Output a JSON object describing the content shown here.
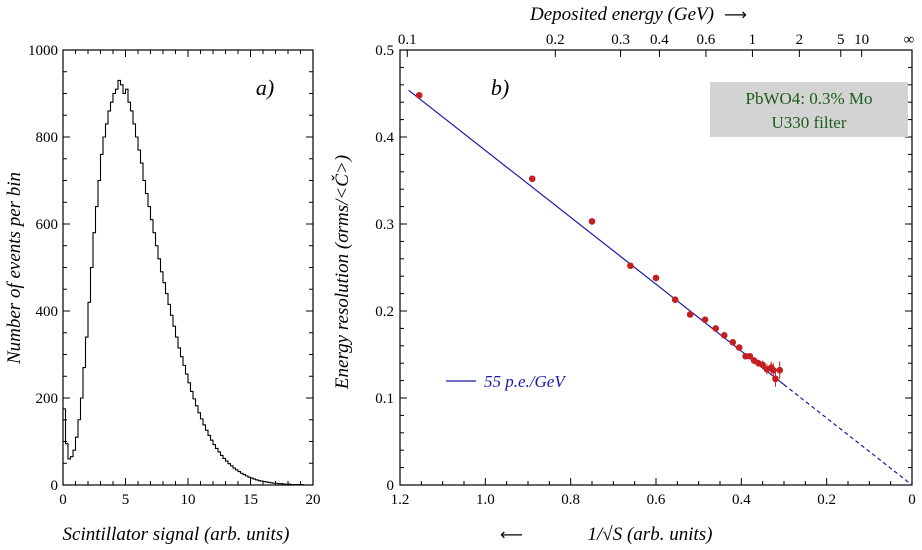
{
  "chart_data": [
    {
      "type": "histogram",
      "panel_label": "a)",
      "xlabel": "Scintillator signal (arb. units)",
      "ylabel": "Number of events per bin",
      "xlim": [
        0,
        20
      ],
      "ylim": [
        0,
        1000
      ],
      "x_ticks": [
        "0",
        "5",
        "10",
        "15",
        "20"
      ],
      "y_ticks": [
        "0",
        "200",
        "400",
        "600",
        "800",
        "1000"
      ],
      "bin_width": 0.2,
      "counts": [
        175,
        95,
        60,
        65,
        80,
        110,
        150,
        200,
        270,
        340,
        420,
        500,
        580,
        640,
        700,
        760,
        800,
        830,
        860,
        880,
        900,
        910,
        930,
        920,
        900,
        910,
        880,
        860,
        830,
        800,
        770,
        740,
        700,
        670,
        640,
        610,
        580,
        550,
        520,
        490,
        465,
        440,
        415,
        390,
        365,
        340,
        315,
        295,
        275,
        255,
        235,
        215,
        198,
        182,
        166,
        152,
        138,
        126,
        114,
        103,
        93,
        84,
        76,
        68,
        61,
        55,
        49,
        44,
        39,
        35,
        31,
        27,
        24,
        21,
        18,
        16,
        14,
        12,
        10,
        9,
        8,
        7,
        6,
        5,
        4,
        4,
        3,
        3,
        2,
        2,
        2,
        1,
        1,
        1,
        1,
        1,
        0,
        0,
        0,
        0
      ]
    },
    {
      "type": "scatter",
      "panel_label": "b)",
      "xlabel": "1/√S (arb. units)",
      "ylabel": "Energy resolution (σrms/<Č>)",
      "top_axis_label": "Deposited energy (GeV)",
      "top_ticks": [
        "0.1",
        "0.2",
        "0.3",
        "0.4",
        "0.6",
        "1",
        "2",
        "5",
        "10",
        "∞"
      ],
      "top_tick_x": [
        1.183,
        0.836,
        0.683,
        0.592,
        0.483,
        0.374,
        0.264,
        0.167,
        0.118,
        0.0
      ],
      "xlim": [
        1.2,
        0.0
      ],
      "ylim": [
        0.0,
        0.5
      ],
      "x_ticks": [
        "1.2",
        "1.0",
        "0.8",
        "0.6",
        "0.4",
        "0.2",
        "0"
      ],
      "y_ticks": [
        "0",
        "0.1",
        "0.2",
        "0.3",
        "0.4",
        "0.5"
      ],
      "annotation": [
        "PbWO4: 0.3% Mo",
        "U330 filter"
      ],
      "legend": "55 p.e./GeV",
      "fit_line": {
        "slope": 0.3846,
        "intercept": 0.0,
        "solid_from_x": 1.18,
        "solid_to_x": 0.3
      },
      "series": [
        {
          "x": [
            1.155,
            0.89,
            0.75,
            0.66,
            0.6,
            0.555,
            0.52,
            0.485,
            0.46,
            0.44,
            0.42,
            0.405,
            0.39,
            0.38,
            0.37,
            0.36,
            0.35,
            0.34,
            0.33,
            0.325,
            0.32,
            0.31
          ],
          "y": [
            0.448,
            0.352,
            0.303,
            0.252,
            0.238,
            0.213,
            0.196,
            0.19,
            0.18,
            0.172,
            0.164,
            0.158,
            0.148,
            0.148,
            0.143,
            0.14,
            0.138,
            0.133,
            0.135,
            0.132,
            0.122,
            0.132
          ],
          "yerr": [
            0.002,
            0.002,
            0.002,
            0.002,
            0.002,
            0.002,
            0.002,
            0.002,
            0.002,
            0.002,
            0.002,
            0.003,
            0.003,
            0.003,
            0.004,
            0.004,
            0.005,
            0.006,
            0.007,
            0.008,
            0.009,
            0.01
          ]
        }
      ]
    }
  ],
  "colors": {
    "points": "#c41e1e",
    "fit": "#1a1aa8",
    "box_fill": "#d3d3d3",
    "box_text": "#1a5c1a"
  }
}
